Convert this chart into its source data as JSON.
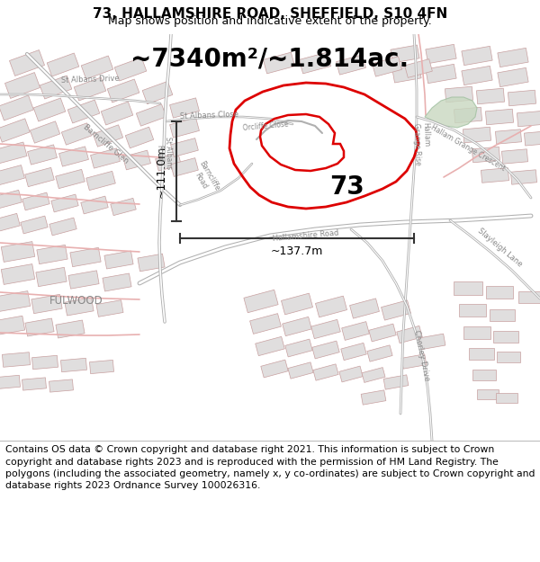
{
  "title_line1": "73, HALLAMSHIRE ROAD, SHEFFIELD, S10 4FN",
  "title_line2": "Map shows position and indicative extent of the property.",
  "area_text": "~7340m²/~1.814ac.",
  "label_73": "73",
  "dim_horiz": "~137.7m",
  "dim_vert": "~111.0m",
  "footer_text": "Contains OS data © Crown copyright and database right 2021. This information is subject to Crown copyright and database rights 2023 and is reproduced with the permission of HM Land Registry. The polygons (including the associated geometry, namely x, y co-ordinates) are subject to Crown copyright and database rights 2023 Ordnance Survey 100026316.",
  "map_bg": "#f8f6f6",
  "block_face": "#e0dede",
  "block_edge": "#c8a0a0",
  "road_pink": "#e8b0b0",
  "road_dark": "#d08080",
  "road_gray": "#b0b0b0",
  "property_red": "#dd0000",
  "dim_color": "#333333",
  "green_area": "#c8d8c0",
  "title_fontsize": 11,
  "subtitle_fontsize": 9,
  "area_fontsize": 20,
  "label_fontsize": 20,
  "dim_fontsize": 9,
  "footer_fontsize": 7.8,
  "road_label_size": 6,
  "road_label_color": "#888888"
}
